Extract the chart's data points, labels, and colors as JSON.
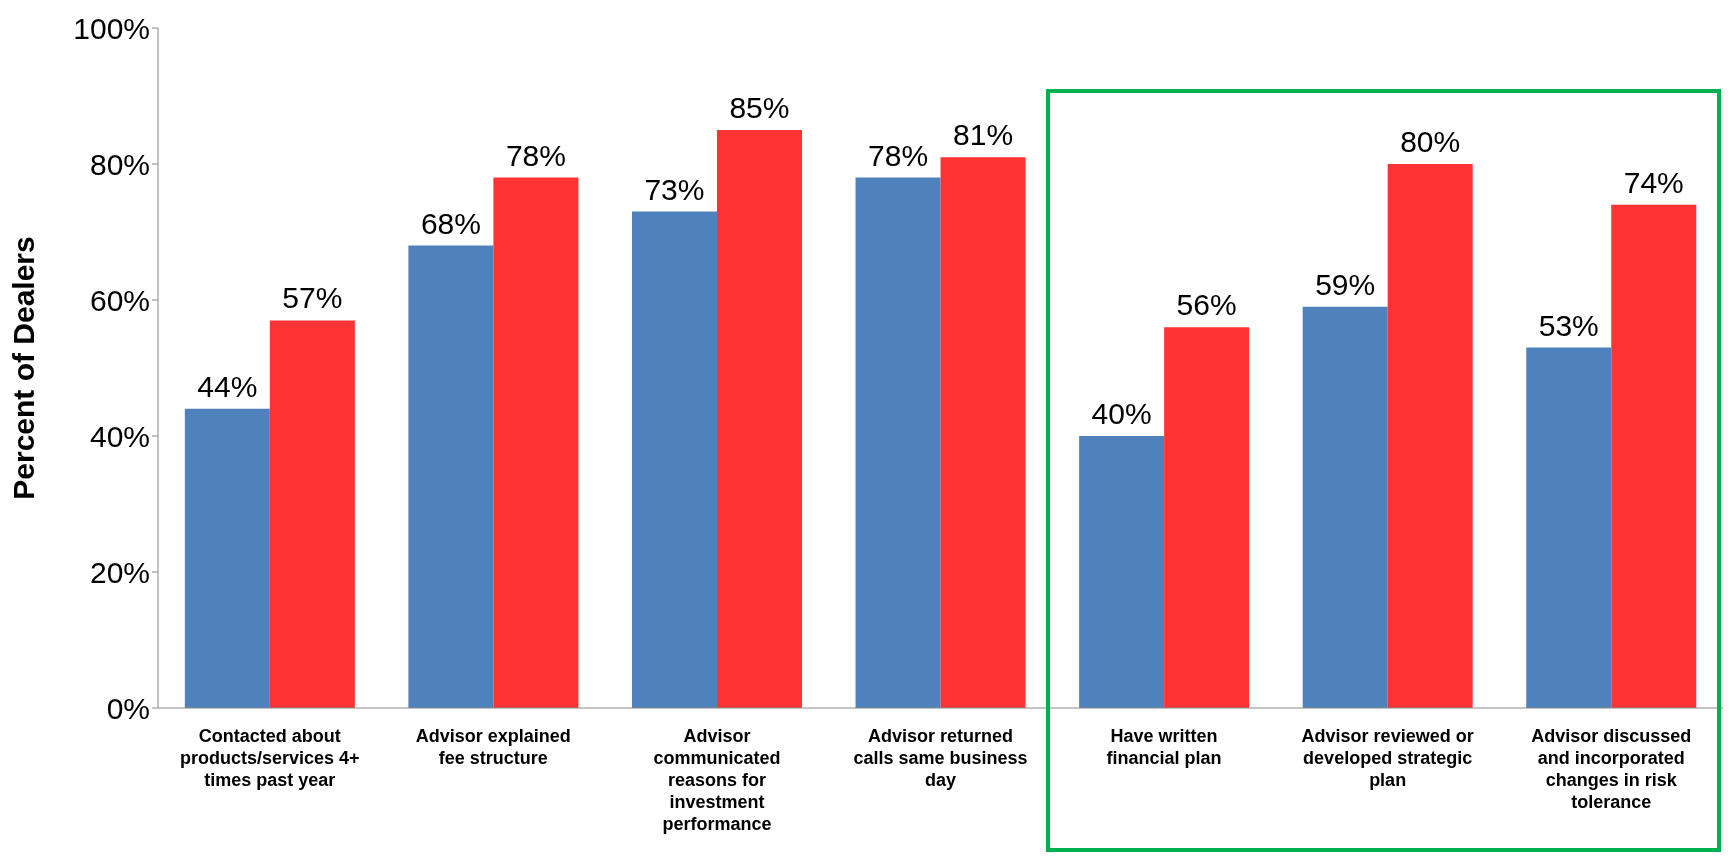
{
  "chart_data": {
    "type": "bar",
    "ylabel": "Percent of Dealers",
    "categories": [
      "Contacted about products/services 4+ times past year",
      "Advisor explained fee structure",
      "Advisor communicated reasons for investment performance",
      "Advisor returned calls same business day",
      "Have written financial plan",
      "Advisor reviewed or developed strategic plan",
      "Advisor discussed and incorporated changes in risk tolerance"
    ],
    "series": [
      {
        "color": "#4f81bd",
        "values": [
          44,
          68,
          73,
          78,
          40,
          59,
          53
        ],
        "value_labels": [
          "44%",
          "68%",
          "73%",
          "78%",
          "40%",
          "59%",
          "53%"
        ]
      },
      {
        "color": "#ff3333",
        "values": [
          57,
          78,
          85,
          81,
          56,
          80,
          74
        ],
        "value_labels": [
          "57%",
          "78%",
          "85%",
          "81%",
          "56%",
          "80%",
          "74%"
        ]
      }
    ],
    "ylim": [
      0,
      100
    ],
    "yticks": [
      {
        "value": 0,
        "label": "0%"
      },
      {
        "value": 20,
        "label": "20%"
      },
      {
        "value": 40,
        "label": "40%"
      },
      {
        "value": 60,
        "label": "60%"
      },
      {
        "value": 80,
        "label": "80%"
      },
      {
        "value": 100,
        "label": "100%"
      }
    ],
    "grid": false,
    "legend": false
  }
}
